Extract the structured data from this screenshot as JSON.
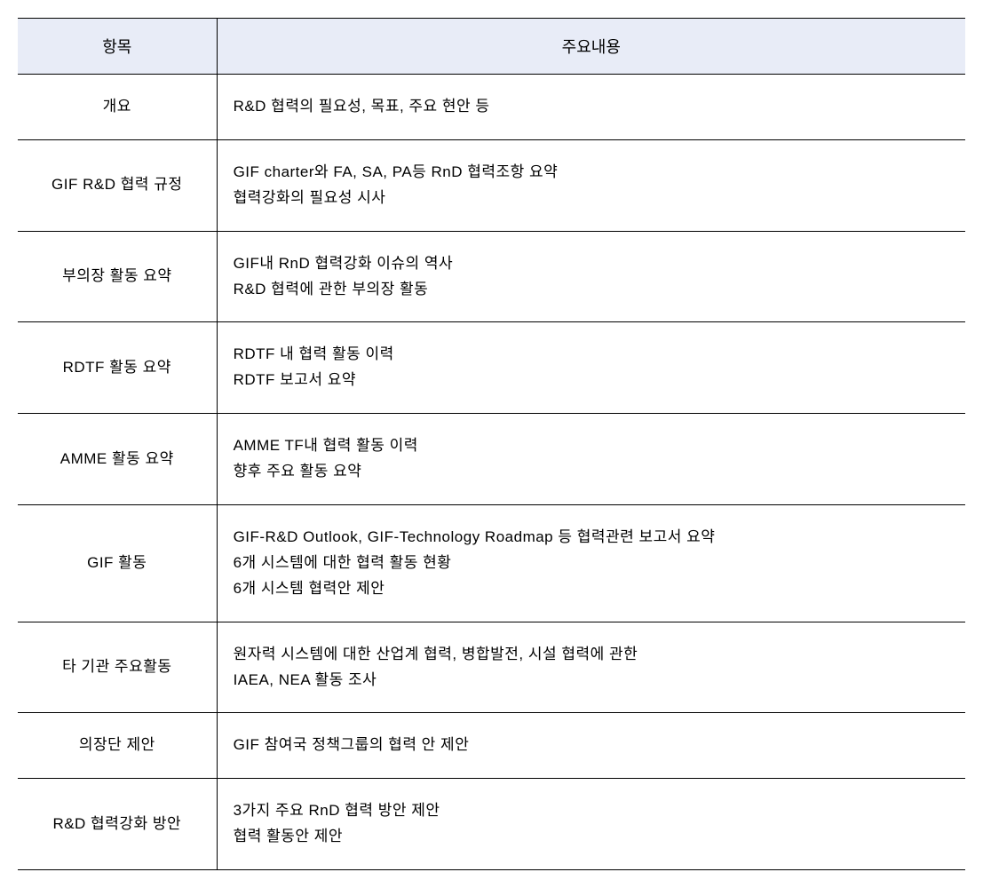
{
  "table": {
    "type": "table",
    "header_bg_color": "#e8ecf7",
    "border_color": "#000000",
    "text_color": "#000000",
    "font_size_header": 18,
    "font_size_body": 17,
    "column_widths": [
      "21%",
      "79%"
    ],
    "columns": [
      {
        "label": "항목"
      },
      {
        "label": "주요내용"
      }
    ],
    "rows": [
      {
        "item": "개요",
        "content_lines": [
          "R&D 협력의 필요성, 목표, 주요 현안 등"
        ]
      },
      {
        "item": "GIF R&D 협력 규정",
        "content_lines": [
          "GIF charter와 FA, SA, PA등 RnD 협력조항 요약",
          "협력강화의 필요성 시사"
        ]
      },
      {
        "item": "부의장 활동 요약",
        "content_lines": [
          "GIF내 RnD 협력강화 이슈의 역사",
          "R&D 협력에 관한 부의장 활동"
        ]
      },
      {
        "item": "RDTF 활동 요약",
        "content_lines": [
          "RDTF 내 협력 활동 이력",
          "RDTF 보고서 요약"
        ]
      },
      {
        "item": "AMME 활동 요약",
        "content_lines": [
          "AMME TF내 협력 활동 이력",
          "향후 주요 활동 요약"
        ]
      },
      {
        "item": "GIF 활동",
        "content_lines": [
          "GIF-R&D Outlook, GIF-Technology Roadmap 등 협력관련 보고서 요약",
          "6개 시스템에 대한 협력 활동 현황",
          "6개 시스템 협력안 제안"
        ]
      },
      {
        "item": "타 기관 주요활동",
        "content_lines": [
          "원자력 시스템에 대한 산업계 협력, 병합발전, 시설 협력에 관한",
          "IAEA, NEA 활동 조사"
        ]
      },
      {
        "item": "의장단 제안",
        "content_lines": [
          "GIF 참여국 정책그룹의 협력 안 제안"
        ]
      },
      {
        "item": "R&D 협력강화 방안",
        "content_lines": [
          "3가지 주요 RnD 협력 방안 제안",
          "협력 활동안 제안"
        ]
      }
    ]
  }
}
